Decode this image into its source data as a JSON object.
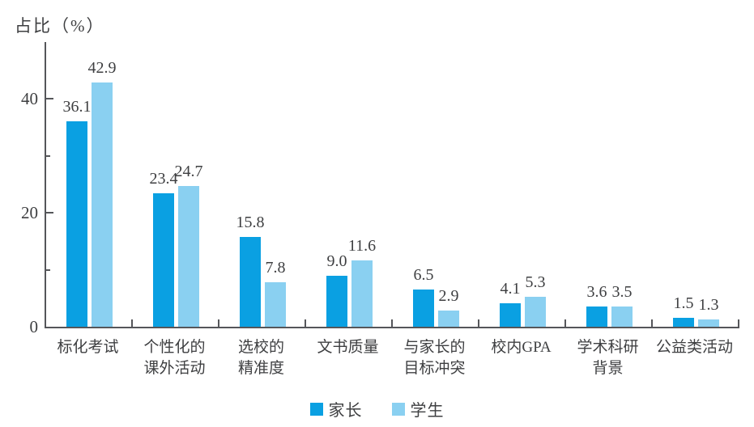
{
  "chart_data": {
    "type": "bar",
    "title": "占比（%）",
    "ylabel": "占比（%）",
    "xlabel": "",
    "categories": [
      [
        "标化考试"
      ],
      [
        "个性化的",
        "课外活动"
      ],
      [
        "选校的",
        "精准度"
      ],
      [
        "文书质量"
      ],
      [
        "与家长的",
        "目标冲突"
      ],
      [
        "校内GPA"
      ],
      [
        "学术科研",
        "背景"
      ],
      [
        "公益类活动"
      ]
    ],
    "series": [
      {
        "name": "家长",
        "key": "parents",
        "color": "#0aa0e2",
        "values": [
          36.1,
          23.4,
          15.8,
          9.0,
          6.5,
          4.1,
          3.6,
          1.5
        ]
      },
      {
        "name": "学生",
        "key": "students",
        "color": "#8ad0f1",
        "values": [
          42.9,
          24.7,
          7.8,
          11.6,
          2.9,
          5.3,
          3.5,
          1.3
        ]
      }
    ],
    "ylim": [
      0,
      50
    ],
    "yticks": [
      0,
      20,
      40
    ],
    "minor_yticks": [
      10,
      30
    ],
    "grid": false,
    "legend_position": "bottom"
  },
  "colors": {
    "axis": "#55565a",
    "text": "#3e3f41",
    "background": "#ffffff"
  }
}
